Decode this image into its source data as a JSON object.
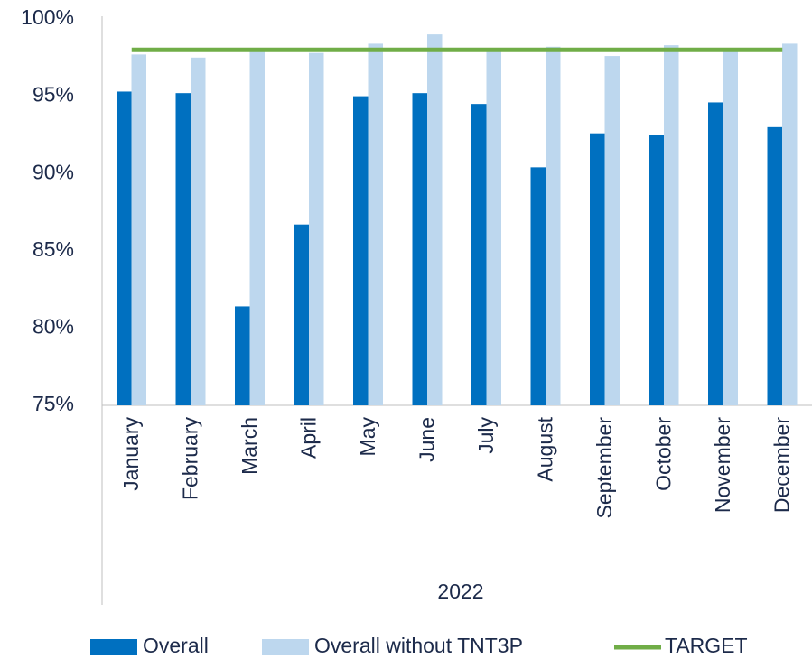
{
  "chart_data": {
    "type": "bar",
    "categories": [
      "January",
      "February",
      "March",
      "April",
      "May",
      "June",
      "July",
      "August",
      "September",
      "October",
      "November",
      "December"
    ],
    "group_label": "2022",
    "series": [
      {
        "name": "Overall",
        "color": "#0070c0",
        "values": [
          95.3,
          95.2,
          81.4,
          86.7,
          95.0,
          95.2,
          94.5,
          90.4,
          92.6,
          92.5,
          94.6,
          93.0
        ]
      },
      {
        "name": "Overall without TNT3P",
        "color": "#bdd7ee",
        "values": [
          97.7,
          97.5,
          98.0,
          97.8,
          98.4,
          99.0,
          98.0,
          98.2,
          97.6,
          98.3,
          98.0,
          98.4
        ]
      },
      {
        "name": "TARGET",
        "type": "line",
        "color": "#70ad47",
        "values": [
          98,
          98,
          98,
          98,
          98,
          98,
          98,
          98,
          98,
          98,
          98,
          98
        ]
      }
    ],
    "ylim": [
      75,
      100
    ],
    "yticks": [
      {
        "value": 75,
        "label": "75%"
      },
      {
        "value": 80,
        "label": "80%"
      },
      {
        "value": 85,
        "label": "85%"
      },
      {
        "value": 90,
        "label": "90%"
      },
      {
        "value": 95,
        "label": "95%"
      },
      {
        "value": 100,
        "label": "100%"
      }
    ],
    "grid": false,
    "legend": "bottom"
  }
}
